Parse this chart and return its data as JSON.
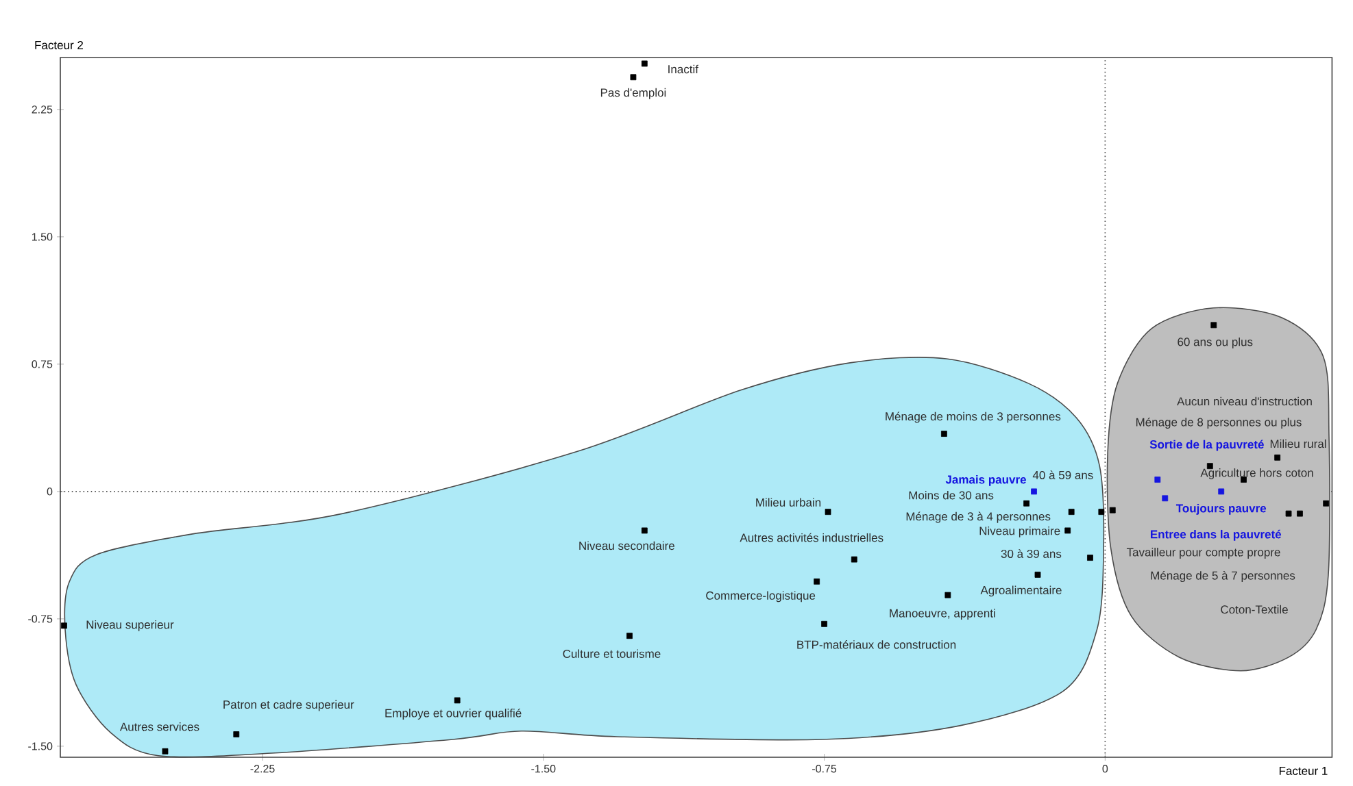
{
  "chart_data": {
    "type": "scatter",
    "xlabel": "Facteur 1",
    "ylabel": "Facteur 2",
    "xlim": [
      -2.79,
      0.606
    ],
    "ylim": [
      -1.565,
      2.556
    ],
    "xticks": [
      {
        "value": -2.25,
        "label": "-2.25"
      },
      {
        "value": -1.5,
        "label": "-1.50"
      },
      {
        "value": -0.75,
        "label": "-0.75"
      },
      0
    ],
    "yticks": [
      {
        "value": -1.5,
        "label": "-1.50"
      },
      {
        "value": -0.75,
        "label": "-0.75"
      },
      0,
      {
        "value": 0.75,
        "label": "0.75"
      },
      {
        "value": 1.5,
        "label": "1.50"
      },
      {
        "value": 2.25,
        "label": "2.25"
      }
    ],
    "marker": "square",
    "ref_lines": [
      {
        "axis": "y",
        "value": 0,
        "line_style": "dotted"
      },
      {
        "axis": "x",
        "value": 0,
        "line_style": "dotted"
      }
    ],
    "series": [
      {
        "color": "#000000",
        "x": [
          -1.23,
          -1.26,
          -2.78,
          -2.51,
          -2.32,
          -1.73,
          -1.27,
          -1.23,
          -0.43,
          -0.21,
          -0.74,
          -0.09,
          -0.1,
          -0.04,
          -0.18,
          -0.01,
          -0.67,
          -0.77,
          -0.42,
          -0.75,
          0.29,
          0.28,
          0.02,
          0.46,
          0.37,
          0.49,
          0.52,
          0.59
        ],
        "values": [
          2.52,
          2.44,
          -0.79,
          -1.53,
          -1.43,
          -1.23,
          -0.85,
          -0.23,
          0.34,
          -0.07,
          -0.12,
          -0.12,
          -0.23,
          -0.39,
          -0.49,
          -0.12,
          -0.4,
          -0.53,
          -0.61,
          -0.78,
          0.98,
          0.15,
          -0.11,
          0.2,
          0.07,
          -0.13,
          -0.13,
          -0.07
        ]
      },
      {
        "color": "#1515e0",
        "x": [
          -0.19,
          0.14,
          0.16,
          0.31
        ],
        "values": [
          0.0,
          0.07,
          -0.04,
          0.0
        ]
      }
    ],
    "annotations": [
      {
        "text": "Inactif",
        "x": -1.23,
        "y": 2.52
      },
      {
        "text": "Pas d'emploi",
        "x": -1.26,
        "y": 2.44
      },
      {
        "text": "Niveau superieur",
        "x": -2.78,
        "y": -0.79
      },
      {
        "text": "Autres services",
        "x": -2.51,
        "y": -1.53
      },
      {
        "text": "Patron et cadre superieur",
        "x": -2.32,
        "y": -1.43
      },
      {
        "text": "Employe et ouvrier qualifié",
        "x": -1.73,
        "y": -1.23
      },
      {
        "text": "Culture et tourisme",
        "x": -1.27,
        "y": -0.85
      },
      {
        "text": "Niveau secondaire",
        "x": -1.23,
        "y": -0.23
      },
      {
        "text": "Ménage de moins de 3 personnes",
        "x": -0.43,
        "y": 0.34
      },
      {
        "text": "Moins de 30 ans",
        "x": -0.21,
        "y": -0.07
      },
      {
        "text": "Milieu urbain",
        "x": -0.74,
        "y": -0.12
      },
      {
        "text": "Ménage de 3 à 4 personnes",
        "x": -0.09,
        "y": -0.12
      },
      {
        "text": "Niveau primaire",
        "x": -0.1,
        "y": -0.23
      },
      {
        "text": "30 à 39 ans",
        "x": -0.04,
        "y": -0.39
      },
      {
        "text": "Agroalimentaire",
        "x": -0.18,
        "y": -0.49
      },
      {
        "text": "40 à 59 ans",
        "x": -0.01,
        "y": -0.12
      },
      {
        "text": "Autres activités industrielles",
        "x": -0.67,
        "y": -0.4
      },
      {
        "text": "Commerce-logistique",
        "x": -0.77,
        "y": -0.53
      },
      {
        "text": "Manoeuvre, apprenti",
        "x": -0.42,
        "y": -0.61
      },
      {
        "text": "BTP-matériaux de construction",
        "x": -0.75,
        "y": -0.78
      },
      {
        "text": "60 ans ou plus",
        "x": 0.29,
        "y": 0.98
      },
      "Aucun niveau d'instruction",
      "Ménage de 8 personnes ou plus",
      "Milieu rural",
      "Agriculture hors coton",
      "Tavailleur pour compte propre",
      "Ménage de 5 à 7 personnes",
      "Coton-Textile",
      {
        "text": "Jamais pauvre",
        "x": -0.19,
        "y": 0.0
      },
      {
        "text": "Sortie de la pauvreté",
        "x": 0.14,
        "y": 0.07
      },
      {
        "text": "Entree dans la pauvreté",
        "x": 0.16,
        "y": -0.04
      },
      {
        "text": "Toujours pauvre",
        "x": 0.31,
        "y": 0.0
      }
    ]
  }
}
